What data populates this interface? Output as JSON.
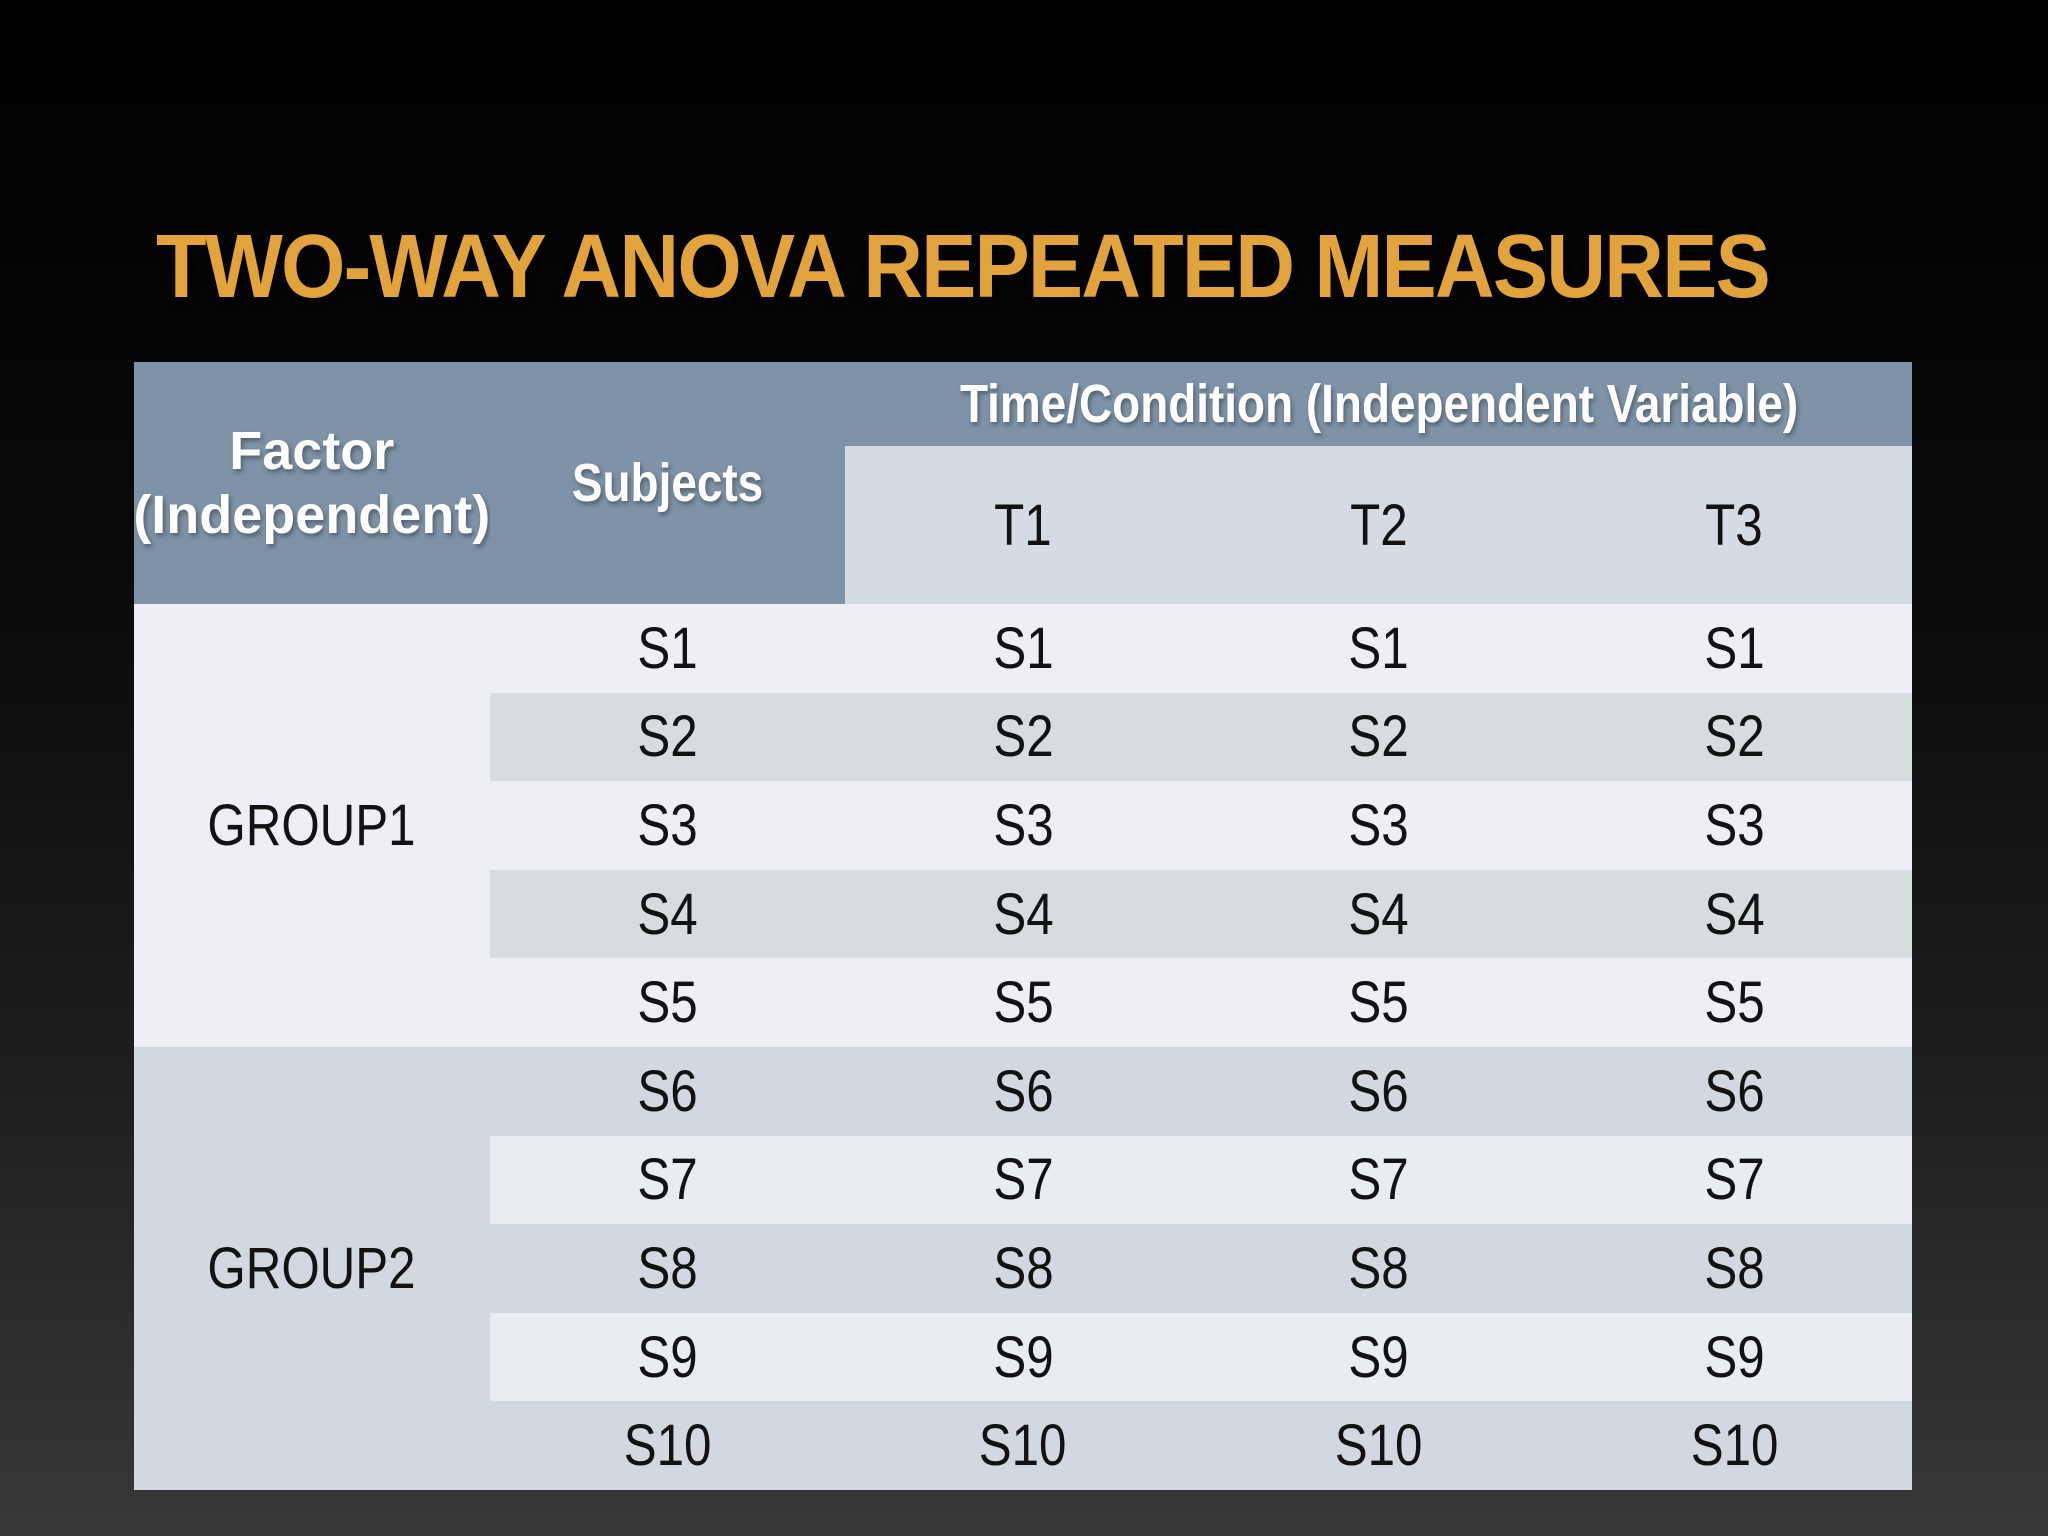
{
  "slide": {
    "title": "TWO-WAY ANOVA REPEATED MEASURES"
  },
  "table": {
    "header": {
      "factor_line1": "Factor",
      "factor_line2": "(Independent)",
      "subjects": "Subjects",
      "time_condition": "Time/Condition (Independent Variable)",
      "time_cols": [
        "T1",
        "T2",
        "T3"
      ]
    },
    "group_labels": [
      "GROUP1",
      "GROUP2"
    ],
    "rows": [
      {
        "band": "g1-light",
        "cells": [
          "S1",
          "S1",
          "S1",
          "S1"
        ]
      },
      {
        "band": "g1-dark",
        "cells": [
          "S2",
          "S2",
          "S2",
          "S2"
        ]
      },
      {
        "band": "g1-light",
        "cells": [
          "S3",
          "S3",
          "S3",
          "S3"
        ]
      },
      {
        "band": "g1-dark",
        "cells": [
          "S4",
          "S4",
          "S4",
          "S4"
        ]
      },
      {
        "band": "g1-light",
        "cells": [
          "S5",
          "S5",
          "S5",
          "S5"
        ]
      },
      {
        "band": "g2-dark",
        "cells": [
          "S6",
          "S6",
          "S6",
          "S6"
        ]
      },
      {
        "band": "g2-light",
        "cells": [
          "S7",
          "S7",
          "S7",
          "S7"
        ]
      },
      {
        "band": "g2-dark",
        "cells": [
          "S8",
          "S8",
          "S8",
          "S8"
        ]
      },
      {
        "band": "g2-light",
        "cells": [
          "S9",
          "S9",
          "S9",
          "S9"
        ]
      },
      {
        "band": "g2-dark",
        "cells": [
          "S10",
          "S10",
          "S10",
          "S10"
        ]
      }
    ],
    "palette": {
      "header-bg": "#7E93A7",
      "subheader-bg": "#D5DBE2",
      "g1-light": "#EDEFF4",
      "g1-dark": "#D7DCDE",
      "g2-light": "#E9ECF1",
      "g2-dark": "#D2D8DF",
      "title-color": "#E2A33C",
      "header-text": "#FFFFFF",
      "body-text": "#121212"
    }
  }
}
